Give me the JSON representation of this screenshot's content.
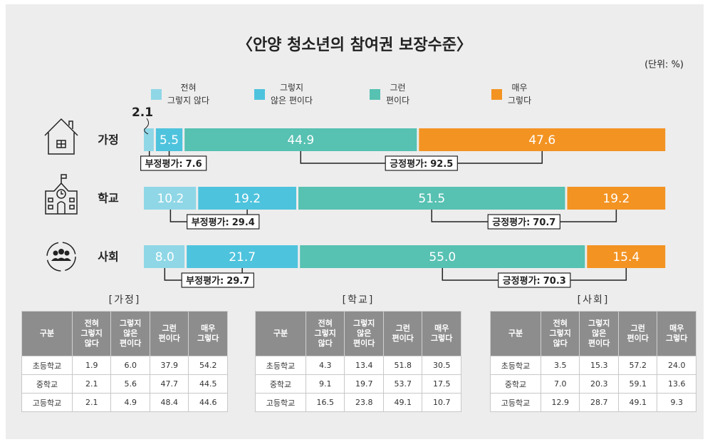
{
  "chart_data": {
    "type": "stacked-barh",
    "title": "〈안양 청소년의 참여권 보장수준〉",
    "unit": "(단위: %)",
    "categories": [
      "가정",
      "학교",
      "사회"
    ],
    "xlim": [
      0,
      100
    ],
    "series": [
      {
        "name": "전혀\n그렇지 않다",
        "color": "#8fd7e6",
        "values": [
          2.1,
          10.2,
          8.0
        ],
        "value_labels": [
          "2.1",
          "10.2",
          "8.0"
        ]
      },
      {
        "name": "그렇지\n않은 편이다",
        "color": "#4ec3dd",
        "values": [
          5.5,
          19.2,
          21.7
        ],
        "value_labels": [
          "5.5",
          "19.2",
          "21.7"
        ]
      },
      {
        "name": "그런\n편이다",
        "color": "#57c1b2",
        "values": [
          44.9,
          51.5,
          55.0
        ],
        "value_labels": [
          "44.9",
          "51.5",
          "55.0"
        ]
      },
      {
        "name": "매우\n그렇다",
        "color": "#f39322",
        "values": [
          47.6,
          19.2,
          15.4
        ],
        "value_labels": [
          "47.6",
          "19.2",
          "15.4"
        ]
      }
    ],
    "summaries": [
      {
        "negative": {
          "label": "부정평가:",
          "value": 7.6
        },
        "positive": {
          "label": "긍정평가:",
          "value": 92.5
        }
      },
      {
        "negative": {
          "label": "부정평가:",
          "value": 29.4
        },
        "positive": {
          "label": "긍정평가:",
          "value": 70.7
        }
      },
      {
        "negative": {
          "label": "부정평가:",
          "value": 29.7
        },
        "positive": {
          "label": "긍정평가:",
          "value": 70.3
        }
      }
    ]
  },
  "tables": [
    {
      "title": "[가정]",
      "header": [
        "구분",
        "전혀\n그렇지\n않다",
        "그렇지\n않은\n편이다",
        "그런\n편이다",
        "매우\n그렇다"
      ],
      "rows": [
        [
          "초등학교",
          "1.9",
          "6.0",
          "37.9",
          "54.2"
        ],
        [
          "중학교",
          "2.1",
          "5.6",
          "47.7",
          "44.5"
        ],
        [
          "고등학교",
          "2.1",
          "4.9",
          "48.4",
          "44.6"
        ]
      ]
    },
    {
      "title": "[학교]",
      "header": [
        "구분",
        "전혀\n그렇지\n않다",
        "그렇지\n않은\n편이다",
        "그런\n편이다",
        "매우\n그렇다"
      ],
      "rows": [
        [
          "초등학교",
          "4.3",
          "13.4",
          "51.8",
          "30.5"
        ],
        [
          "중학교",
          "9.1",
          "19.7",
          "53.7",
          "17.5"
        ],
        [
          "고등학교",
          "16.5",
          "23.8",
          "49.1",
          "10.7"
        ]
      ]
    },
    {
      "title": "[사회]",
      "header": [
        "구분",
        "전혀\n그렇지\n않다",
        "그렇지\n않은\n편이다",
        "그런\n편이다",
        "매우\n그렇다"
      ],
      "rows": [
        [
          "초등학교",
          "3.5",
          "15.3",
          "57.2",
          "24.0"
        ],
        [
          "중학교",
          "7.0",
          "20.3",
          "59.1",
          "13.6"
        ],
        [
          "고등학교",
          "12.9",
          "28.7",
          "49.1",
          "9.3"
        ]
      ]
    }
  ]
}
